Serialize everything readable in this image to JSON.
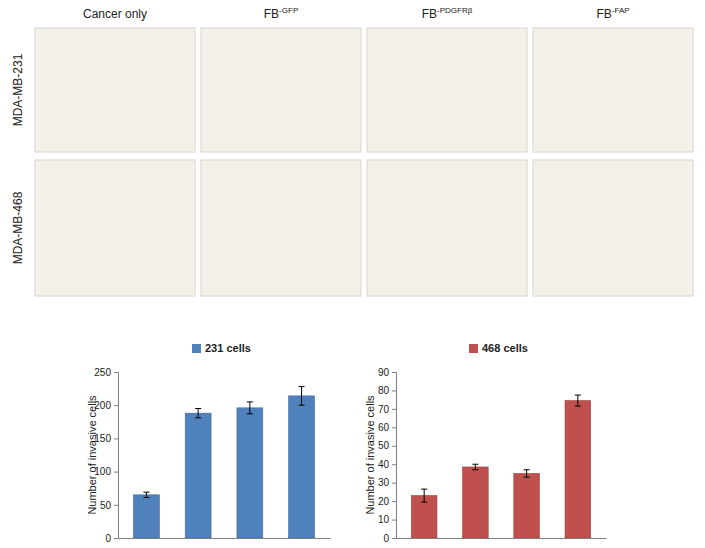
{
  "image_panels": {
    "columns": [
      {
        "text": "Cancer only"
      },
      {
        "text": "FB",
        "sup": "-GFP"
      },
      {
        "text": "FB",
        "sup": "-PDGFRβ"
      },
      {
        "text": "FB",
        "sup": "-FAP"
      }
    ],
    "rows": [
      "MDA-MB-231",
      "MDA-MB-468"
    ]
  },
  "chart_data": [
    {
      "type": "bar",
      "y_label": "Number of invasive cells",
      "categories": [
        null,
        null,
        null,
        null
      ],
      "series": [
        {
          "name": "231 cells",
          "color": "#4f81bd",
          "values": [
            65,
            188,
            196,
            214
          ],
          "errors": [
            4,
            7,
            9,
            14
          ]
        }
      ],
      "ylim": [
        0,
        250
      ],
      "yticks": [
        0,
        50,
        100,
        150,
        200,
        250
      ],
      "grid": false,
      "legend": "top"
    },
    {
      "type": "bar",
      "y_label": "Number of invasive cells",
      "categories": [
        null,
        null,
        null,
        null
      ],
      "series": [
        {
          "name": "468 cells",
          "color": "#c0504d",
          "values": [
            23,
            38.5,
            35,
            74.5
          ],
          "errors": [
            3.5,
            1.5,
            2,
            3
          ]
        }
      ],
      "ylim": [
        0,
        90
      ],
      "yticks": [
        0,
        10,
        20,
        30,
        40,
        50,
        60,
        70,
        80,
        90
      ],
      "grid": false,
      "legend": "top"
    }
  ]
}
